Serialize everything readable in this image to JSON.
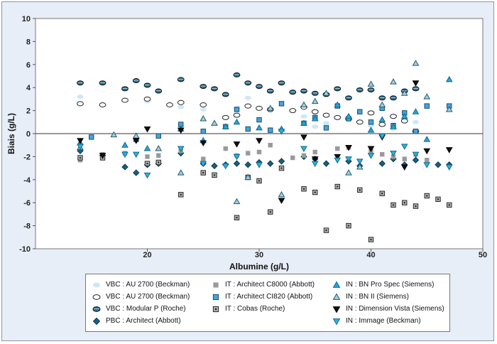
{
  "chart_data": {
    "type": "scatter",
    "xlabel": "Albumine (g/L)",
    "ylabel": "Biais (g/L)",
    "xlim": [
      10,
      50
    ],
    "ylim": [
      -10,
      10
    ],
    "xticks": [
      20,
      30,
      40,
      50
    ],
    "yticks": [
      10,
      8,
      6,
      4,
      2,
      0,
      -2,
      -4,
      -6,
      -8,
      -10
    ],
    "grid": false,
    "legend_position": "bottom",
    "series": [
      {
        "name": "VBC : AU 2700 (Beckman)",
        "marker": "ellipse",
        "fill": "#cfe6f7",
        "stroke": "none",
        "x": [
          14,
          18,
          20,
          23,
          25,
          28,
          29,
          31,
          34,
          35,
          36,
          38,
          40,
          42,
          44
        ],
        "y": [
          3.2,
          2.9,
          2.8,
          2.3,
          2.1,
          2.2,
          3.1,
          2.0,
          1.5,
          0.6,
          0.9,
          1.2,
          0.7,
          0.4,
          1.0
        ]
      },
      {
        "name": "VBC : AU 2700 (Beckman)",
        "marker": "ellipse",
        "fill": "#ffffff",
        "stroke": "#222",
        "x": [
          14,
          16,
          18,
          20,
          22,
          23,
          25,
          27,
          28,
          29,
          30,
          31,
          33,
          34,
          35,
          36,
          37,
          38,
          39,
          40,
          41,
          42,
          43,
          44
        ],
        "y": [
          2.6,
          2.5,
          2.9,
          3.0,
          2.5,
          2.7,
          2.5,
          1.4,
          1.6,
          2.4,
          2.2,
          2.1,
          2.0,
          2.3,
          1.9,
          1.6,
          1.4,
          1.3,
          1.0,
          1.8,
          0.8,
          1.5,
          1.1,
          0.2
        ]
      },
      {
        "name": "VBC : Modular P (Roche)",
        "marker": "ellipse",
        "fill": "#2b6e8c",
        "stroke": "#111",
        "x": [
          14,
          16,
          18,
          19,
          20,
          21,
          23,
          25,
          26,
          27,
          28,
          29,
          30,
          31,
          32,
          33,
          34,
          35,
          36,
          37,
          38,
          39,
          40,
          41,
          42,
          43,
          44
        ],
        "y": [
          4.4,
          4.4,
          3.9,
          4.6,
          4.2,
          3.7,
          4.7,
          4.1,
          3.9,
          3.4,
          5.1,
          4.4,
          4.1,
          3.7,
          4.4,
          3.6,
          3.7,
          3.5,
          3.4,
          3.9,
          3.1,
          3.8,
          3.8,
          3.1,
          3.1,
          3.7,
          3.9
        ]
      },
      {
        "name": "PBC : Architect (Abbott)",
        "marker": "diamond",
        "fill": "#1d5e7e",
        "stroke": "#0d3a50",
        "x": [
          14,
          16,
          18,
          19,
          20,
          21,
          23,
          25,
          26,
          27,
          28,
          29,
          30,
          31,
          32,
          34,
          35,
          36,
          38,
          39,
          41,
          42,
          43,
          44,
          46,
          47
        ],
        "y": [
          -1.5,
          -1.9,
          -2.9,
          -3.4,
          -2.7,
          -2.6,
          -1.7,
          -2.6,
          -2.8,
          -2.7,
          -2.6,
          -2.7,
          -2.5,
          -2.6,
          -2.4,
          -2.0,
          -2.2,
          -2.6,
          -2.4,
          -2.8,
          -2.6,
          -2.2,
          -2.7,
          -2.3,
          -2.7,
          -2.7
        ]
      },
      {
        "name": "IT : Architect C8000 (Abbott)",
        "marker": "square",
        "fill": "#9a9a9a",
        "stroke": "none",
        "x": [
          14,
          16,
          18,
          20,
          21,
          23,
          25,
          27,
          28,
          29,
          30,
          31,
          33,
          34,
          35,
          37,
          38,
          40,
          41,
          42,
          43,
          44,
          45
        ],
        "y": [
          -2.3,
          -1.8,
          -1.7,
          -2.0,
          -1.9,
          -1.5,
          -2.2,
          -1.3,
          -1.9,
          -1.7,
          -1.6,
          -1.0,
          -2.1,
          -1.9,
          -1.6,
          -1.3,
          -1.2,
          -1.5,
          -1.8,
          -2.0,
          -2.2,
          -1.8,
          -2.3
        ]
      },
      {
        "name": "IT : Architect CI820 (Abbott)",
        "marker": "square",
        "fill": "#4aa3d8",
        "stroke": "#124e73",
        "x": [
          15,
          19,
          21,
          23,
          25,
          27,
          28,
          29,
          30,
          31,
          32,
          34,
          35,
          36,
          37,
          38,
          39,
          40,
          41,
          42,
          43,
          44,
          45,
          47
        ],
        "y": [
          -0.3,
          -0.5,
          -0.2,
          0.8,
          0.2,
          0.6,
          2.1,
          0.4,
          1.2,
          0.3,
          2.6,
          0.9,
          1.4,
          0.5,
          2.4,
          1.3,
          1.9,
          1.0,
          2.2,
          0.7,
          1.8,
          0.2,
          2.4,
          2.4
        ]
      },
      {
        "name": "IT : Cobas (Roche)",
        "marker": "square-dot",
        "fill": "#bbbbbb",
        "stroke": "#222",
        "x": [
          14,
          16,
          20,
          21,
          23,
          25,
          26,
          28,
          29,
          30,
          31,
          32,
          34,
          35,
          36,
          37,
          38,
          39,
          40,
          41,
          42,
          43,
          44,
          45,
          46,
          47
        ],
        "y": [
          -2.1,
          -2.1,
          -2.6,
          -2.5,
          -5.3,
          -3.4,
          -3.6,
          -7.3,
          -3.8,
          -4.1,
          -6.8,
          -3.0,
          -4.8,
          -5.1,
          -8.4,
          -4.6,
          -8.0,
          -4.9,
          -9.2,
          -5.2,
          -6.2,
          -6.0,
          -6.3,
          -5.4,
          -5.7,
          -6.2
        ]
      },
      {
        "name": "IN : BN Pro Spec (Siemens)",
        "marker": "triangle-up",
        "fill": "#2aa4d3",
        "stroke": "#0f6a93",
        "x": [
          14,
          18,
          20,
          23,
          25,
          27,
          28,
          30,
          32,
          34,
          35,
          37,
          38,
          40,
          41,
          42,
          43,
          44,
          45,
          47
        ],
        "y": [
          -0.8,
          -1.0,
          -1.3,
          0.4,
          -0.6,
          0.6,
          1.0,
          0.5,
          0.4,
          0.9,
          1.3,
          2.5,
          1.5,
          0.3,
          1.2,
          0.6,
          1.5,
          1.9,
          -0.5,
          4.7
        ]
      },
      {
        "name": "IN : BN II (Siemens)",
        "marker": "triangle-up",
        "fill": "#9fd0e2",
        "stroke": "#2a5a6a",
        "x": [
          14,
          17,
          19,
          21,
          23,
          25,
          26,
          28,
          29,
          31,
          32,
          34,
          35,
          36,
          38,
          39,
          40,
          41,
          42,
          43,
          44,
          45,
          47
        ],
        "y": [
          -1.2,
          -0.1,
          -0.2,
          -1.3,
          -3.4,
          1.3,
          0.9,
          -5.9,
          -3.8,
          2.2,
          -5.3,
          2.5,
          2.8,
          3.5,
          -3.4,
          -2.9,
          4.3,
          2.5,
          4.5,
          3.5,
          6.1,
          3.2,
          2.1
        ]
      },
      {
        "name": "IN : Dimension Vista (Siemens)",
        "marker": "triangle-down",
        "fill": "#111111",
        "stroke": "#000",
        "x": [
          14,
          16,
          19,
          20,
          23,
          25,
          28,
          30,
          32,
          34,
          35,
          37,
          38,
          40,
          41,
          43,
          44,
          45,
          47
        ],
        "y": [
          -0.6,
          -1.9,
          -0.6,
          0.4,
          0.3,
          -0.8,
          -0.9,
          -0.6,
          -5.8,
          -0.3,
          -2.2,
          -2.0,
          -1.2,
          -1.3,
          -0.3,
          -2.9,
          4.4,
          -1.5,
          -1.4
        ]
      },
      {
        "name": "IN : Immage (Beckman)",
        "marker": "triangle-down",
        "fill": "#33aee0",
        "stroke": "#0d6d96",
        "x": [
          14,
          18,
          19,
          20,
          23,
          25,
          27,
          28,
          30,
          32,
          34,
          35,
          37,
          38,
          39,
          40,
          41,
          42,
          43,
          44,
          45,
          47
        ],
        "y": [
          -1.1,
          -1.8,
          -1.8,
          -3.6,
          -1.3,
          -2.6,
          -2.8,
          -2.0,
          -2.7,
          0.2,
          -1.3,
          -2.6,
          -2.3,
          -2.2,
          -2.4,
          -1.9,
          -0.2,
          -1.7,
          -1.1,
          -1.8,
          -2.7,
          -2.9
        ]
      }
    ]
  }
}
